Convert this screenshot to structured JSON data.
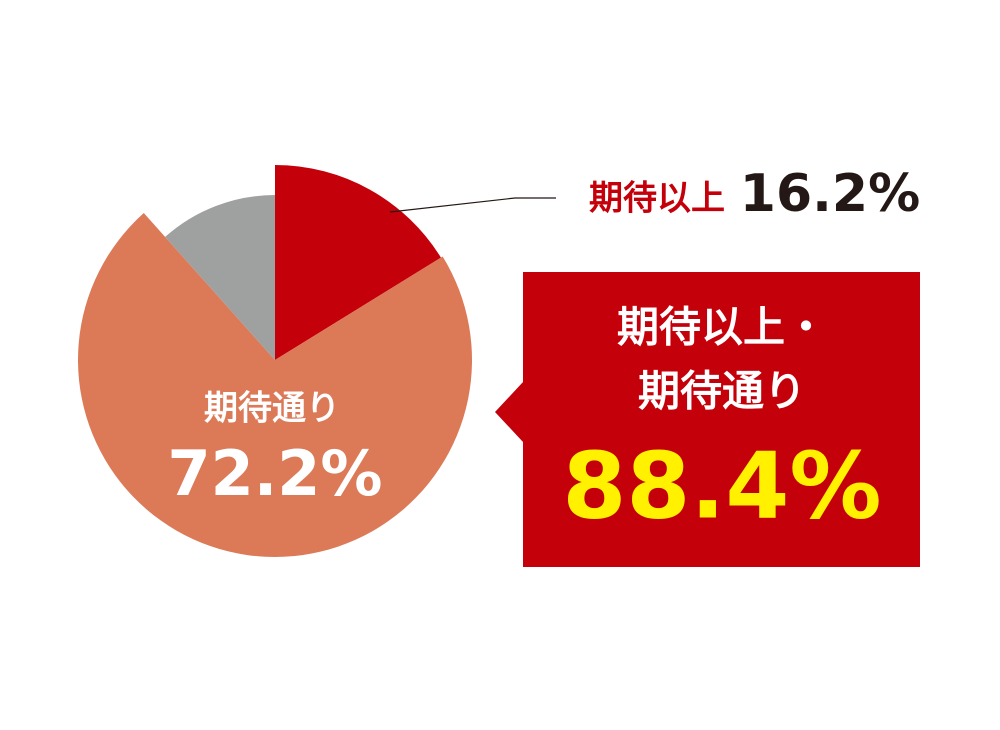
{
  "chart_data": {
    "type": "pie",
    "categories": [
      "期待以上",
      "期待通り",
      null
    ],
    "values": [
      16.2,
      72.2,
      11.6
    ],
    "value_labels": [
      "16.2%",
      "72.2%",
      null
    ],
    "colors": [
      "#c4000b",
      "#dc7a58",
      "#9fa0a0"
    ],
    "callout_lines": [
      "期待以上・",
      "期待通り"
    ],
    "callout_value": "88.4%"
  }
}
